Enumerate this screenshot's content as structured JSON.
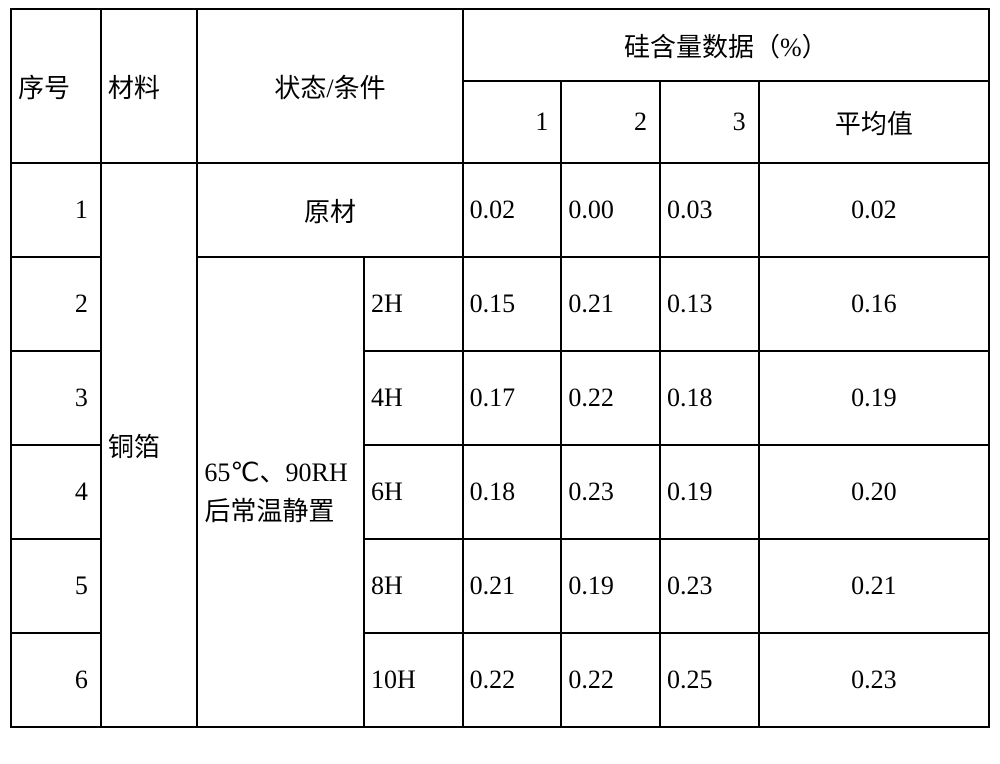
{
  "table": {
    "headers": {
      "seq": "序号",
      "material": "材料",
      "condition": "状态/条件",
      "data_group": "硅含量数据（%）",
      "d1": "1",
      "d2": "2",
      "d3": "3",
      "avg": "平均值"
    },
    "material": "铜箔",
    "condition_group": "65℃、90RH后常温静置",
    "rows": [
      {
        "seq": "1",
        "cond_full": "原材",
        "v1": "0.02",
        "v2": "0.00",
        "v3": "0.03",
        "avg": "0.02"
      },
      {
        "seq": "2",
        "cond_time": "2H",
        "v1": "0.15",
        "v2": "0.21",
        "v3": "0.13",
        "avg": "0.16"
      },
      {
        "seq": "3",
        "cond_time": "4H",
        "v1": "0.17",
        "v2": "0.22",
        "v3": "0.18",
        "avg": "0.19"
      },
      {
        "seq": "4",
        "cond_time": "6H",
        "v1": "0.18",
        "v2": "0.23",
        "v3": "0.19",
        "avg": "0.20"
      },
      {
        "seq": "5",
        "cond_time": "8H",
        "v1": "0.21",
        "v2": "0.19",
        "v3": "0.23",
        "avg": "0.21"
      },
      {
        "seq": "6",
        "cond_time": "10H",
        "v1": "0.22",
        "v2": "0.22",
        "v3": "0.25",
        "avg": "0.23"
      }
    ],
    "colors": {
      "border": "#000000",
      "background": "#ffffff",
      "text": "#000000"
    },
    "fontsize_pt": 20
  }
}
